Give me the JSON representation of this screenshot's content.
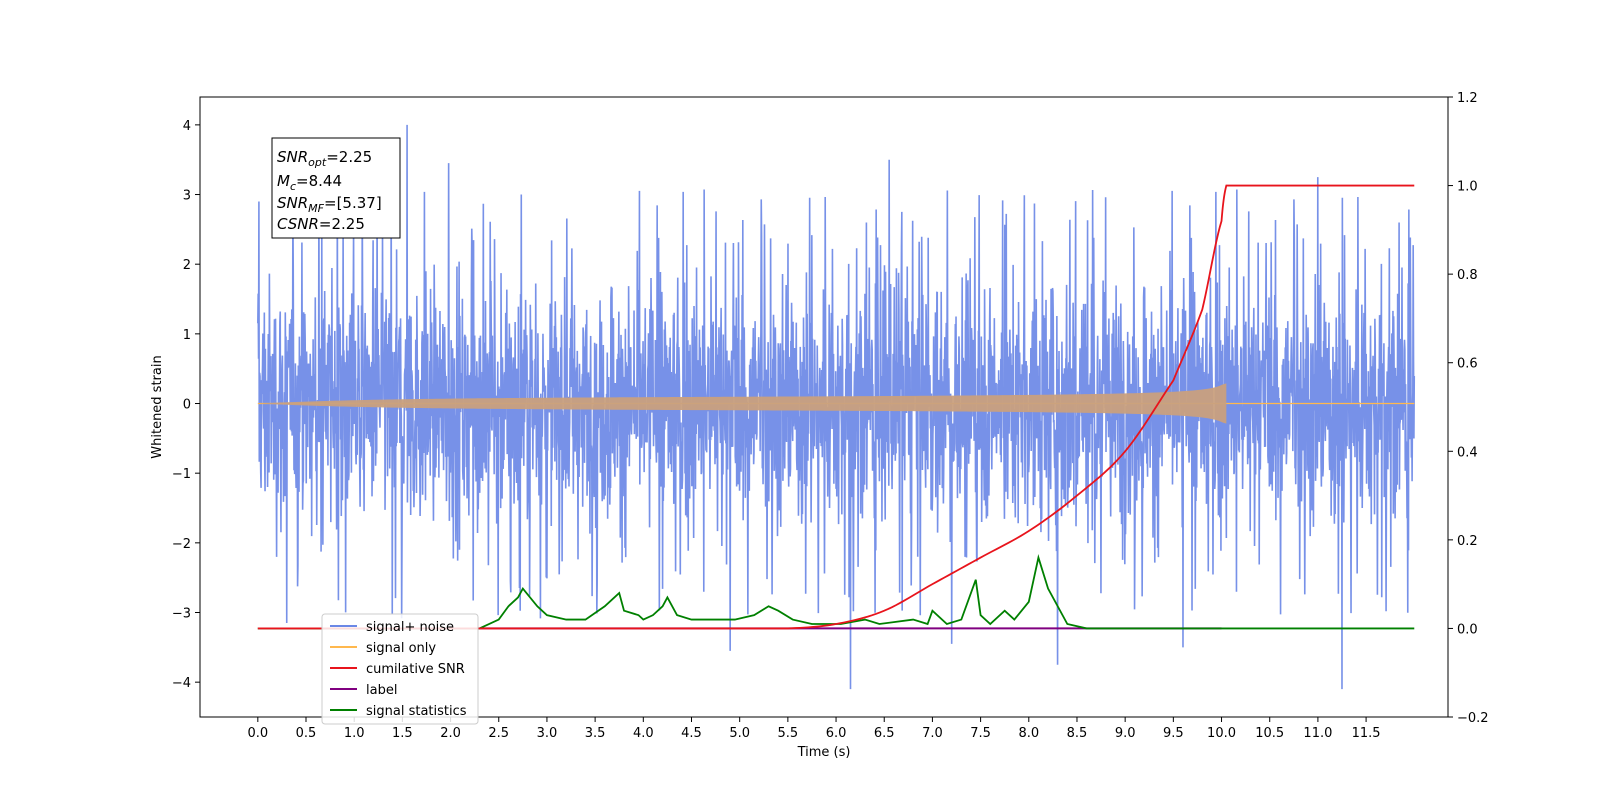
{
  "chart_data": {
    "type": "line",
    "xlabel": "Time (s)",
    "ylabel": "Whitened strain",
    "xlim": [
      -0.6,
      12.35
    ],
    "ylim_left": [
      -4.5,
      4.4
    ],
    "ylim_right": [
      -0.2,
      1.2
    ],
    "x_ticks": [
      0.0,
      0.5,
      1.0,
      1.5,
      2.0,
      2.5,
      3.0,
      3.5,
      4.0,
      4.5,
      5.0,
      5.5,
      6.0,
      6.5,
      7.0,
      7.5,
      8.0,
      8.5,
      9.0,
      9.5,
      10.0,
      10.5,
      11.0,
      11.5
    ],
    "x_tick_labels": [
      "0.0",
      "0.5",
      "1.0",
      "1.5",
      "2.0",
      "2.5",
      "3.0",
      "3.5",
      "4.0",
      "4.5",
      "5.0",
      "5.5",
      "6.0",
      "6.5",
      "7.0",
      "7.5",
      "8.0",
      "8.5",
      "9.0",
      "9.5",
      "10.0",
      "10.5",
      "11.0",
      "11.5"
    ],
    "y_ticks_left": [
      -4,
      -3,
      -2,
      -1,
      0,
      1,
      2,
      3,
      4
    ],
    "y_tick_labels_left": [
      "−4",
      "−3",
      "−2",
      "−1",
      "0",
      "1",
      "2",
      "3",
      "4"
    ],
    "y_ticks_right": [
      -0.2,
      0.0,
      0.2,
      0.4,
      0.6,
      0.8,
      1.0,
      1.2
    ],
    "y_tick_labels_right": [
      "−0.2",
      "0.0",
      "0.2",
      "0.4",
      "0.6",
      "0.8",
      "1.0",
      "1.2"
    ],
    "grid": false,
    "legend_placement": "lower-left",
    "annotation": {
      "snr_opt": "2.25",
      "mc": "8.44",
      "snr_mf": "[5.37]",
      "csnr": "2.25"
    },
    "series": [
      {
        "name": "signal+ noise",
        "axis": "left",
        "color": "#6b88e6",
        "x_range": [
          0.0,
          12.0
        ],
        "typical_band": [
          -1.7,
          1.7
        ],
        "peaks": [
          [
            0.01,
            2.9
          ],
          [
            0.3,
            -3.15
          ],
          [
            1.55,
            4.0
          ],
          [
            1.98,
            3.45
          ],
          [
            6.15,
            -4.1
          ],
          [
            6.55,
            3.5
          ],
          [
            8.3,
            -3.75
          ],
          [
            11.25,
            -4.1
          ],
          [
            11.0,
            3.25
          ],
          [
            9.6,
            -3.5
          ],
          [
            7.2,
            -3.45
          ],
          [
            4.9,
            -3.55
          ]
        ]
      },
      {
        "name": "signal only",
        "axis": "left",
        "color": "#ffb84d",
        "chirp_start": 0.0,
        "chirp_end": 10.05,
        "final_amplitude": 0.35
      },
      {
        "name": "cumilative SNR",
        "axis": "right",
        "color": "#e8141c",
        "x": [
          0.0,
          5.5,
          6.0,
          6.5,
          7.0,
          7.5,
          8.0,
          8.5,
          9.0,
          9.5,
          9.8,
          10.0,
          10.05,
          12.0
        ],
        "y": [
          0.0,
          0.0,
          0.01,
          0.04,
          0.1,
          0.16,
          0.22,
          0.3,
          0.4,
          0.56,
          0.72,
          0.92,
          1.0,
          1.0
        ]
      },
      {
        "name": "label",
        "axis": "right",
        "color": "#800080",
        "x": [
          2.3,
          10.0
        ],
        "y": [
          0.0,
          0.0
        ]
      },
      {
        "name": "signal statistics",
        "axis": "right",
        "color": "#008000",
        "x": [
          0.0,
          2.3,
          2.5,
          2.6,
          2.7,
          2.75,
          2.9,
          3.0,
          3.2,
          3.4,
          3.6,
          3.7,
          3.75,
          3.8,
          3.95,
          4.0,
          4.1,
          4.2,
          4.25,
          4.35,
          4.5,
          4.7,
          4.85,
          4.95,
          5.15,
          5.3,
          5.4,
          5.55,
          5.75,
          6.05,
          6.3,
          6.45,
          6.8,
          6.95,
          7.0,
          7.15,
          7.3,
          7.45,
          7.5,
          7.6,
          7.75,
          7.85,
          8.0,
          8.1,
          8.2,
          8.4,
          8.6,
          9.0,
          9.3,
          9.5,
          10.0,
          12.0
        ],
        "y": [
          0.0,
          0.0,
          0.02,
          0.05,
          0.07,
          0.09,
          0.05,
          0.03,
          0.02,
          0.02,
          0.05,
          0.07,
          0.08,
          0.04,
          0.03,
          0.02,
          0.03,
          0.05,
          0.07,
          0.03,
          0.02,
          0.02,
          0.02,
          0.02,
          0.03,
          0.05,
          0.04,
          0.02,
          0.01,
          0.01,
          0.02,
          0.01,
          0.02,
          0.01,
          0.04,
          0.01,
          0.02,
          0.11,
          0.03,
          0.01,
          0.04,
          0.02,
          0.06,
          0.16,
          0.09,
          0.01,
          0.0,
          0.0,
          0.0,
          0.0,
          0.0,
          0.0
        ]
      }
    ]
  },
  "legend": {
    "items": [
      {
        "label": "signal+ noise",
        "color": "#6b88e6"
      },
      {
        "label": "signal only",
        "color": "#ffb84d"
      },
      {
        "label": "cumilative SNR",
        "color": "#e8141c"
      },
      {
        "label": "label",
        "color": "#800080"
      },
      {
        "label": "signal statistics",
        "color": "#008000"
      }
    ]
  }
}
